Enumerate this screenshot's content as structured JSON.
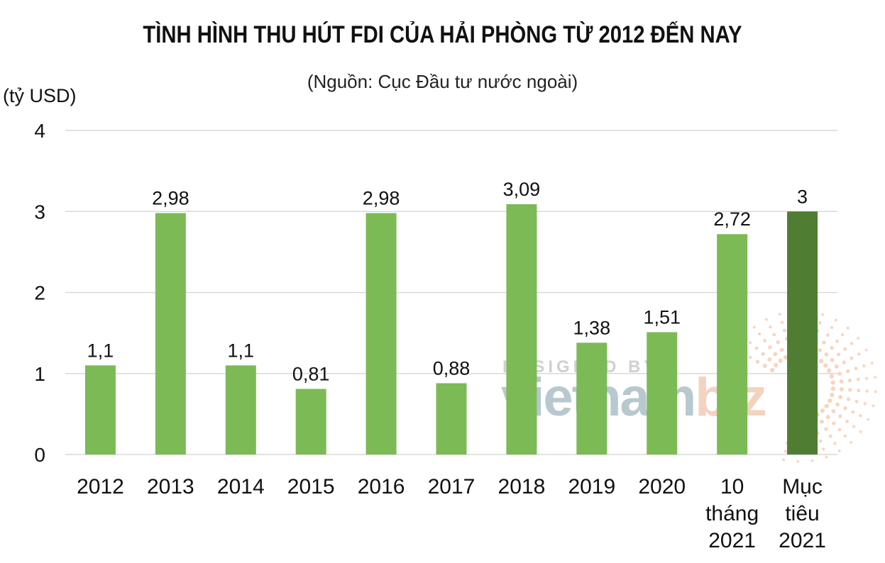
{
  "chart_data": {
    "type": "bar",
    "title": "TÌNH HÌNH THU HÚT FDI CỦA HẢI PHÒNG TỪ 2012 ĐẾN NAY",
    "subtitle": "(Nguồn: Cục Đầu tư nước ngoài)",
    "ylabel": "(tỷ USD)",
    "xlabel": "",
    "ylim": [
      0,
      4
    ],
    "yticks": [
      "0",
      "1",
      "2",
      "3",
      "4"
    ],
    "grid": true,
    "categories": [
      [
        "2012"
      ],
      [
        "2013"
      ],
      [
        "2014"
      ],
      [
        "2015"
      ],
      [
        "2016"
      ],
      [
        "2017"
      ],
      [
        "2018"
      ],
      [
        "2019"
      ],
      [
        "2020"
      ],
      [
        "10",
        "tháng",
        "2021"
      ],
      [
        "Mục",
        "tiêu",
        "2021"
      ]
    ],
    "values": [
      1.1,
      2.98,
      1.1,
      0.81,
      2.98,
      0.88,
      3.09,
      1.38,
      1.51,
      2.72,
      3
    ],
    "value_labels": [
      "1,1",
      "2,98",
      "1,1",
      "0,81",
      "2,98",
      "0,88",
      "3,09",
      "1,38",
      "1,51",
      "2,72",
      "3"
    ],
    "colors": {
      "bar": "#7cba55",
      "highlight_bar": "#4f7d32",
      "grid": "#d9d9d9"
    },
    "highlight_index": 10
  },
  "watermark": {
    "top_text": "DESIGNED BY",
    "brand_a": "vietnam",
    "brand_b": "biz"
  }
}
